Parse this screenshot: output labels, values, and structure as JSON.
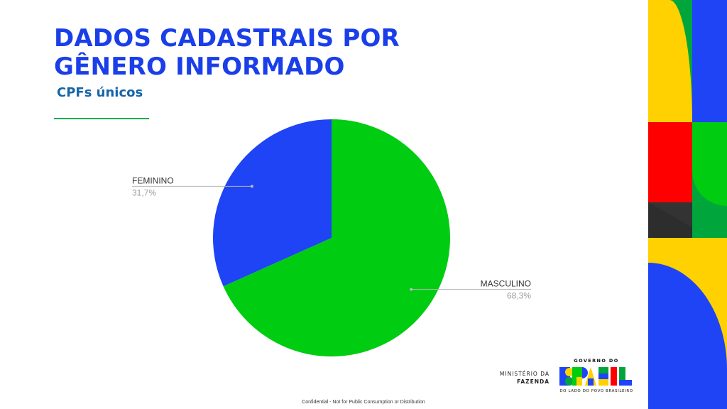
{
  "slide": {
    "title_line1": "DADOS CADASTRAIS POR",
    "title_line2": "GÊNERO INFORMADO",
    "subtitle": "CPFs únicos",
    "footer": "Confidential - Not for Public Consumption or Distribution"
  },
  "branding": {
    "ministry_line1": "MINISTÉRIO DA",
    "ministry_line2": "FAZENDA",
    "logo_top": "GOVERNO DO",
    "logo_word": "BRASIL",
    "logo_tagline": "DO LADO DO POVO BRASILEIRO"
  },
  "colors": {
    "title": "#1a3fe8",
    "subtitle": "#1565a8",
    "masculino": "#00cc11",
    "feminino": "#1e44f5",
    "deco_yellow": "#ffd100",
    "deco_blue": "#1e44f5",
    "deco_green": "#00a63c",
    "deco_red": "#ff0000",
    "deco_dark": "#333333"
  },
  "chart_data": {
    "type": "pie",
    "title": "",
    "categories": [
      "MASCULINO",
      "FEMININO"
    ],
    "values": [
      68.3,
      31.7
    ],
    "value_labels": [
      "68,3%",
      "31,7%"
    ],
    "colors": [
      "#00cc11",
      "#1e44f5"
    ],
    "legend": "none"
  }
}
